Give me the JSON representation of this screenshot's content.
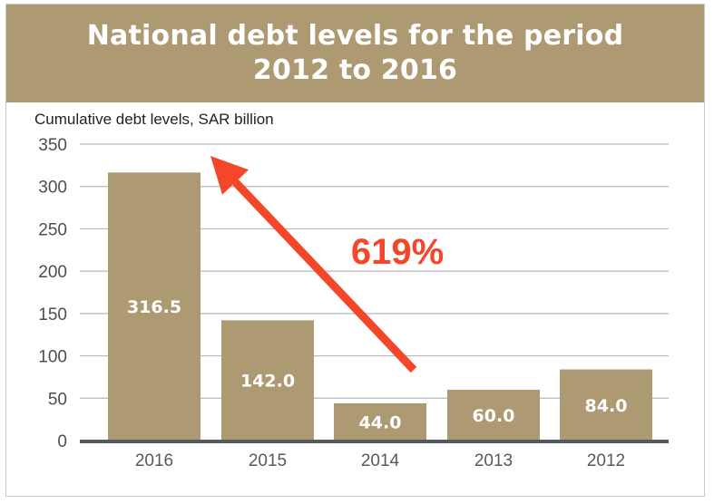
{
  "header": {
    "title_line1": "National debt levels for the period",
    "title_line2": "2012 to 2016"
  },
  "colors": {
    "header_bg": "#ae9a72",
    "bar": "#ae9a72",
    "arrow": "#f4472a",
    "grid": "#b3b9bf",
    "axis": "#555a5f"
  },
  "chart_data": {
    "type": "bar",
    "ylabel": "Cumulative debt levels, SAR billion",
    "categories": [
      "2016",
      "2015",
      "2014",
      "2013",
      "2012"
    ],
    "values": [
      316.5,
      142.0,
      44.0,
      60.0,
      84.0
    ],
    "value_labels": [
      "316.5",
      "142.0",
      "44.0",
      "60.0",
      "84.0"
    ],
    "yticks": [
      0,
      50,
      100,
      150,
      200,
      250,
      300,
      350
    ],
    "ylim": [
      0,
      350
    ],
    "grid": true,
    "annotation": {
      "text": "619%",
      "arrow_from_category": "2014",
      "arrow_to_category": "2016"
    }
  }
}
